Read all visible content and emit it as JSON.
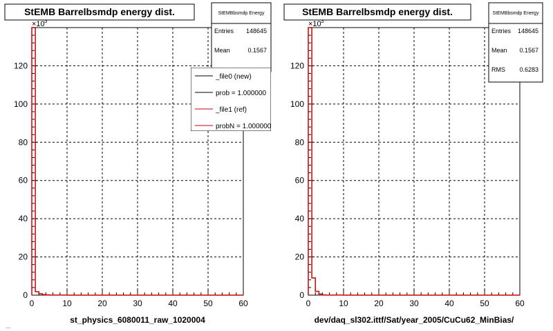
{
  "footer_text": "...",
  "chart_data": [
    {
      "type": "histogram",
      "title": "StEMB Barrelbsmdp energy dist.",
      "xlabel": "st_physics_6080011_raw_1020004",
      "ylabel": "",
      "xlim": [
        0,
        60
      ],
      "ylim": [
        0,
        140000
      ],
      "y_multiplier_label": "×10",
      "y_multiplier_exp": "3",
      "x_ticks": [
        0,
        10,
        20,
        30,
        40,
        50,
        60
      ],
      "y_ticks": [
        0,
        20,
        40,
        60,
        80,
        100,
        120
      ],
      "y_ticks_values": [
        0,
        20000,
        40000,
        60000,
        80000,
        100000,
        120000
      ],
      "grid": true,
      "stats": {
        "title": "StEMBbsmdp Energy",
        "rows": [
          {
            "label": "Entries",
            "value": "148645"
          },
          {
            "label": "Mean",
            "value": "0.1567"
          }
        ]
      },
      "legend": {
        "placement": "right",
        "entries": [
          {
            "label": "_file0 (new)",
            "color": "#000000"
          },
          {
            "label": "prob = 1.000000",
            "color": "#000000"
          },
          {
            "label": "_file1 (ref)",
            "color": "#cc0000"
          },
          {
            "label": "probN = 1.000000",
            "color": "#cc0000"
          }
        ]
      },
      "series": [
        {
          "color": "#cc0000",
          "x": [
            0,
            1,
            2,
            3,
            4,
            5,
            10,
            20,
            30,
            40,
            50,
            60
          ],
          "values": [
            140000,
            1800,
            700,
            250,
            120,
            60,
            0,
            0,
            0,
            0,
            0,
            0
          ]
        }
      ]
    },
    {
      "type": "histogram",
      "title": "StEMB Barrelbsmdp energy dist.",
      "xlabel": "dev/daq_sl302.ittf/Sat/year_2005/CuCu62_MinBias/",
      "ylabel": "",
      "xlim": [
        0,
        60
      ],
      "ylim": [
        0,
        140000
      ],
      "y_multiplier_label": "×10",
      "y_multiplier_exp": "3",
      "x_ticks": [
        0,
        10,
        20,
        30,
        40,
        50,
        60
      ],
      "y_ticks": [
        0,
        20,
        40,
        60,
        80,
        100,
        120
      ],
      "y_ticks_values": [
        0,
        20000,
        40000,
        60000,
        80000,
        100000,
        120000
      ],
      "grid": true,
      "stats": {
        "title": "StEMBbsmdp Energy",
        "rows": [
          {
            "label": "Entries",
            "value": "148645"
          },
          {
            "label": "Mean",
            "value": "0.1567"
          },
          {
            "label": "RMS",
            "value": "0.6283"
          }
        ]
      },
      "legend": null,
      "series": [
        {
          "color": "#cc0000",
          "x": [
            0,
            1,
            2,
            3,
            4,
            5,
            10,
            20,
            30,
            40,
            50,
            60
          ],
          "values": [
            140000,
            9000,
            2000,
            600,
            150,
            50,
            0,
            0,
            0,
            0,
            0,
            0
          ]
        }
      ]
    }
  ]
}
